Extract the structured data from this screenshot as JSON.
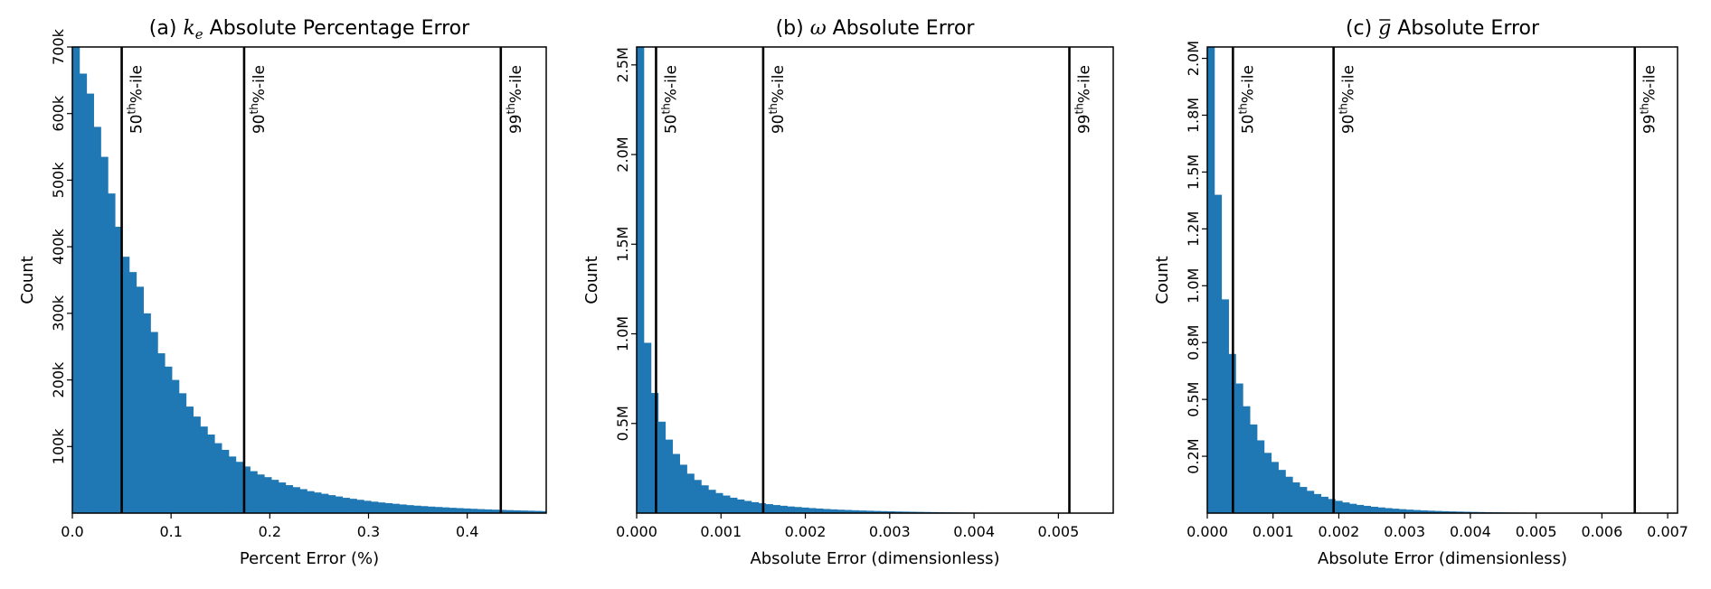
{
  "charts": [
    {
      "panel": "a",
      "title_prefix": "(a) ",
      "title_symbol": "k",
      "title_symbol_sub": "e",
      "title_rest": " Absolute Percentage Error",
      "xlabel": "Percent Error (%)",
      "ylabel": "Count",
      "xlim": [
        0,
        0.48
      ],
      "ylim": [
        0,
        700000
      ],
      "xticks": [
        {
          "v": 0.0,
          "label": "0.0"
        },
        {
          "v": 0.1,
          "label": "0.1"
        },
        {
          "v": 0.2,
          "label": "0.2"
        },
        {
          "v": 0.3,
          "label": "0.3"
        },
        {
          "v": 0.4,
          "label": "0.4"
        }
      ],
      "yticks": [
        {
          "v": 100000,
          "label": "100k"
        },
        {
          "v": 200000,
          "label": "200k"
        },
        {
          "v": 300000,
          "label": "300k"
        },
        {
          "v": 400000,
          "label": "400k"
        },
        {
          "v": 500000,
          "label": "500k"
        },
        {
          "v": 600000,
          "label": "600k"
        },
        {
          "v": 700000,
          "label": "700k"
        }
      ],
      "bin_width": 0.0072,
      "counts": [
        700000,
        660000,
        630000,
        580000,
        535000,
        480000,
        430000,
        385000,
        362000,
        340000,
        300000,
        272000,
        240000,
        220000,
        200000,
        180000,
        160000,
        145000,
        130000,
        118000,
        105000,
        95000,
        85000,
        77000,
        70000,
        63000,
        58000,
        54000,
        50000,
        46000,
        42000,
        39000,
        36000,
        33000,
        31000,
        29000,
        27000,
        25000,
        23000,
        21500,
        20000,
        18500,
        17200,
        16000,
        15000,
        14000,
        13000,
        12000,
        11200,
        10500,
        9800,
        9200,
        8600,
        8000,
        7500,
        7000,
        6500,
        6000,
        5600,
        5200,
        4800,
        4500,
        4200,
        3900,
        3600,
        3300,
        3000
      ],
      "percentiles": [
        {
          "value": 0.05,
          "number": "50",
          "sup": "th",
          "suffix": "%-ile"
        },
        {
          "value": 0.174,
          "number": "90",
          "sup": "th",
          "suffix": "%-ile"
        },
        {
          "value": 0.434,
          "number": "99",
          "sup": "th",
          "suffix": "%-ile"
        }
      ]
    },
    {
      "panel": "b",
      "title_prefix": "(b) ",
      "title_symbol": "ω",
      "title_symbol_sub": "",
      "title_rest": " Absolute Error",
      "xlabel": "Absolute Error (dimensionless)",
      "ylabel": "Count",
      "xlim": [
        0,
        0.00565
      ],
      "ylim": [
        0,
        2600000
      ],
      "xticks": [
        {
          "v": 0.0,
          "label": "0.000"
        },
        {
          "v": 0.001,
          "label": "0.001"
        },
        {
          "v": 0.002,
          "label": "0.002"
        },
        {
          "v": 0.003,
          "label": "0.003"
        },
        {
          "v": 0.004,
          "label": "0.004"
        },
        {
          "v": 0.005,
          "label": "0.005"
        }
      ],
      "yticks": [
        {
          "v": 500000,
          "label": "0.5M"
        },
        {
          "v": 1000000,
          "label": "1.0M"
        },
        {
          "v": 1500000,
          "label": "1.5M"
        },
        {
          "v": 2000000,
          "label": "2.0M"
        },
        {
          "v": 2500000,
          "label": "2.5M"
        }
      ],
      "bin_width": 8.5e-05,
      "counts": [
        2600000,
        950000,
        670000,
        510000,
        410000,
        330000,
        270000,
        220000,
        185000,
        155000,
        130000,
        112000,
        98000,
        86000,
        76000,
        68000,
        61000,
        55000,
        50000,
        45000,
        41000,
        37000,
        34000,
        31000,
        28000,
        25500,
        23000,
        21000,
        19000,
        17500,
        16000,
        14500,
        13200,
        12000,
        11000,
        10000,
        9000,
        8200,
        7500,
        6800,
        6200,
        5600,
        5000,
        4500,
        4000,
        3600,
        3200,
        2800,
        2500,
        2200,
        1900,
        1700,
        1500,
        1300,
        1100,
        950,
        800,
        700,
        600,
        500,
        400,
        350,
        300,
        250,
        200,
        150
      ],
      "percentiles": [
        {
          "value": 0.00023,
          "number": "50",
          "sup": "th",
          "suffix": "%-ile"
        },
        {
          "value": 0.0015,
          "number": "90",
          "sup": "th",
          "suffix": "%-ile"
        },
        {
          "value": 0.00513,
          "number": "99",
          "sup": "th",
          "suffix": "%-ile"
        }
      ]
    },
    {
      "panel": "c",
      "title_prefix": "(c) ",
      "title_symbol": "g",
      "title_symbol_sub": "",
      "title_symbol_bar": true,
      "title_rest": " Absolute Error",
      "xlabel": "Absolute Error (dimensionless)",
      "ylabel": "Count",
      "xlim": [
        0,
        0.00715
      ],
      "ylim": [
        0,
        2050000
      ],
      "xticks": [
        {
          "v": 0.0,
          "label": "0.000"
        },
        {
          "v": 0.001,
          "label": "0.001"
        },
        {
          "v": 0.002,
          "label": "0.002"
        },
        {
          "v": 0.003,
          "label": "0.003"
        },
        {
          "v": 0.004,
          "label": "0.004"
        },
        {
          "v": 0.005,
          "label": "0.005"
        },
        {
          "v": 0.006,
          "label": "0.006"
        },
        {
          "v": 0.007,
          "label": "0.007"
        }
      ],
      "yticks": [
        {
          "v": 250000,
          "label": "0.2M"
        },
        {
          "v": 500000,
          "label": "0.5M"
        },
        {
          "v": 750000,
          "label": "0.8M"
        },
        {
          "v": 1000000,
          "label": "1.0M"
        },
        {
          "v": 1250000,
          "label": "1.2M"
        },
        {
          "v": 1500000,
          "label": "1.5M"
        },
        {
          "v": 1750000,
          "label": "1.8M"
        },
        {
          "v": 2000000,
          "label": "2.0M"
        }
      ],
      "bin_width": 0.000108,
      "counts": [
        2050000,
        1400000,
        940000,
        700000,
        570000,
        470000,
        390000,
        320000,
        265000,
        225000,
        190000,
        160000,
        135000,
        115000,
        98000,
        84000,
        72000,
        62000,
        54000,
        47000,
        41000,
        36000,
        32000,
        28000,
        25000,
        22000,
        19500,
        17300,
        15300,
        13600,
        12000,
        10700,
        9500,
        8400,
        7500,
        6700,
        6000,
        5300,
        4700,
        4200,
        3700,
        3300,
        2900,
        2600,
        2300,
        2000,
        1800,
        1600,
        1400,
        1200,
        1050,
        900,
        780,
        680,
        590,
        510,
        440,
        380,
        320,
        270,
        220
      ],
      "percentiles": [
        {
          "value": 0.00039,
          "number": "50",
          "sup": "th",
          "suffix": "%-ile"
        },
        {
          "value": 0.00192,
          "number": "90",
          "sup": "th",
          "suffix": "%-ile"
        },
        {
          "value": 0.0065,
          "number": "99",
          "sup": "th",
          "suffix": "%-ile"
        }
      ]
    }
  ],
  "colors": {
    "bar": "#1f77b4",
    "line": "#000000",
    "axis": "#000000"
  },
  "chart_data": [
    {
      "type": "bar",
      "title": "(a) k_e Absolute Percentage Error",
      "xlabel": "Percent Error (%)",
      "ylabel": "Count",
      "xlim": [
        0,
        0.48
      ],
      "ylim": [
        0,
        700000
      ],
      "bin_width": 0.0072,
      "annotations": [
        "50th%-ile at 0.05",
        "90th%-ile at 0.174",
        "99th%-ile at 0.434"
      ]
    },
    {
      "type": "bar",
      "title": "(b) ω Absolute Error",
      "xlabel": "Absolute Error (dimensionless)",
      "ylabel": "Count",
      "xlim": [
        0,
        0.00565
      ],
      "ylim": [
        0,
        2600000
      ],
      "bin_width": 8.5e-05,
      "annotations": [
        "50th%-ile at 0.00023",
        "90th%-ile at 0.0015",
        "99th%-ile at 0.00513"
      ]
    },
    {
      "type": "bar",
      "title": "(c) g-bar Absolute Error",
      "xlabel": "Absolute Error (dimensionless)",
      "ylabel": "Count",
      "xlim": [
        0,
        0.00715
      ],
      "ylim": [
        0,
        2050000
      ],
      "bin_width": 0.000108,
      "annotations": [
        "50th%-ile at 0.00039",
        "90th%-ile at 0.00192",
        "99th%-ile at 0.0065"
      ]
    }
  ]
}
